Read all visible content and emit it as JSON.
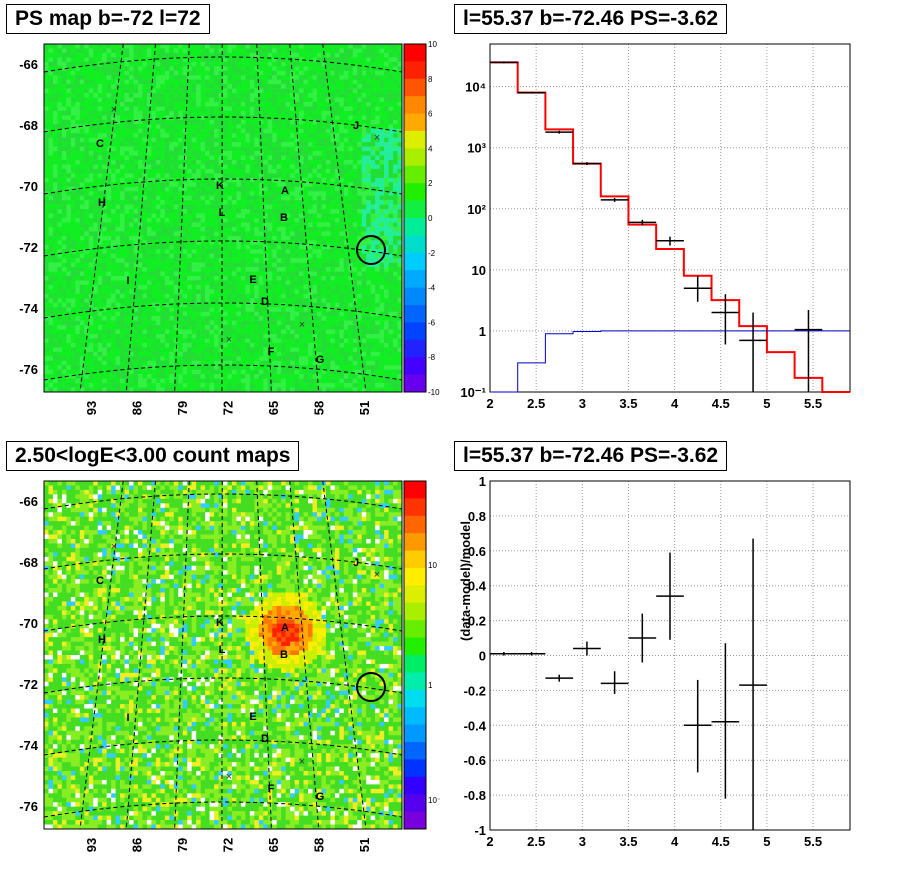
{
  "panels": {
    "ps_map": {
      "title": "PS map b=-72 l=72",
      "lat_ticks": [
        "-66",
        "-68",
        "-70",
        "-72",
        "-74",
        "-76"
      ],
      "lon_ticks": [
        "93",
        "86",
        "79",
        "72",
        "65",
        "58",
        "51"
      ],
      "colorbar_ticks": [
        "10",
        "8",
        "6",
        "4",
        "2",
        "0",
        "-2",
        "-4",
        "-6",
        "-8",
        "-10"
      ],
      "labels": [
        "C",
        "H",
        "K",
        "L",
        "A",
        "B",
        "J",
        "E",
        "D",
        "I",
        "F",
        "G"
      ]
    },
    "count_map": {
      "title": "2.50<logE<3.00 count maps",
      "lat_ticks": [
        "-66",
        "-68",
        "-70",
        "-72",
        "-74",
        "-76"
      ],
      "lon_ticks": [
        "93",
        "86",
        "79",
        "72",
        "65",
        "58",
        "51"
      ],
      "colorbar_ticks": [
        "10",
        "1",
        "10⁻¹"
      ],
      "labels": [
        "C",
        "H",
        "K",
        "L",
        "A",
        "B",
        "J",
        "E",
        "D",
        "I",
        "F",
        "G"
      ]
    },
    "spectrum": {
      "title": "l=55.37 b=-72.46 PS=-3.62"
    },
    "residual": {
      "title": "l=55.37 b=-72.46 PS=-3.62"
    }
  },
  "chart_data": [
    {
      "type": "heatmap",
      "title": "PS map b=-72 l=72",
      "xlabel": "",
      "ylabel": "",
      "x_tick_labels": [
        "93",
        "86",
        "79",
        "72",
        "65",
        "58",
        "51"
      ],
      "y_tick_labels": [
        "-66",
        "-68",
        "-70",
        "-72",
        "-74",
        "-76"
      ],
      "z_range": [
        -10,
        10
      ],
      "markers": [
        "C",
        "H",
        "K",
        "L",
        "A",
        "B",
        "J",
        "E",
        "D",
        "I",
        "F",
        "G"
      ]
    },
    {
      "type": "line",
      "title": "l=55.37 b=-72.46 PS=-3.62",
      "xlim": [
        2,
        5.9
      ],
      "ylim": [
        0.1,
        50000
      ],
      "y_scale": "log",
      "x_ticks": [
        "2",
        "2.5",
        "3",
        "3.5",
        "4",
        "4.5",
        "5",
        "5.5"
      ],
      "y_ticks": [
        "10⁻¹",
        "1",
        "10",
        "10²",
        "10³",
        "10⁴"
      ],
      "series": [
        {
          "style": "step",
          "color": "#ff0000",
          "edges": [
            2.0,
            2.3,
            2.6,
            2.9,
            3.2,
            3.5,
            3.8,
            4.1,
            4.4,
            4.7,
            5.0,
            5.3,
            5.6,
            5.9
          ],
          "values": [
            25000,
            8000,
            2000,
            550,
            160,
            55,
            22,
            8,
            3.2,
            1.2,
            0.45,
            0.17,
            0.08
          ]
        },
        {
          "style": "step",
          "color": "#0000cc",
          "edges": [
            2.0,
            2.3,
            2.6,
            2.9,
            3.2,
            3.5,
            3.8,
            4.1,
            4.4,
            4.7,
            5.0,
            5.3,
            5.6,
            5.9
          ],
          "values": [
            0.1,
            0.3,
            0.9,
            0.98,
            1.0,
            1.0,
            1.0,
            1.0,
            1.0,
            1.0,
            1.0,
            1.0,
            1.0
          ]
        },
        {
          "style": "points",
          "color": "#000000",
          "x": [
            2.15,
            2.45,
            2.75,
            3.05,
            3.35,
            3.65,
            3.95,
            4.25,
            4.55,
            4.85,
            5.45
          ],
          "xerr": [
            0.15,
            0.15,
            0.15,
            0.15,
            0.15,
            0.15,
            0.15,
            0.15,
            0.15,
            0.15,
            0.15
          ],
          "y": [
            25000,
            8000,
            1800,
            550,
            140,
            60,
            30,
            5,
            2,
            0.7,
            1.05
          ],
          "ylo": [
            24000,
            7800,
            1700,
            520,
            130,
            54,
            25,
            3,
            0.6,
            0.1,
            0.1
          ],
          "yhi": [
            26000,
            8200,
            1900,
            580,
            150,
            66,
            35,
            8,
            4,
            2,
            2.2
          ]
        }
      ]
    },
    {
      "type": "scatter",
      "title": "l=55.37 b=-72.46 PS=-3.62",
      "ylabel": "(data-model)/model",
      "xlim": [
        2,
        5.9
      ],
      "ylim": [
        -1,
        1
      ],
      "x_ticks": [
        "2",
        "2.5",
        "3",
        "3.5",
        "4",
        "4.5",
        "5",
        "5.5"
      ],
      "y_ticks": [
        "1",
        "0.8",
        "0.6",
        "0.4",
        "0.2",
        "0",
        "-0.2",
        "-0.4",
        "-0.6",
        "-0.8",
        "-1"
      ],
      "points": {
        "x": [
          2.15,
          2.45,
          2.75,
          3.05,
          3.35,
          3.65,
          3.95,
          4.25,
          4.55,
          4.85
        ],
        "xerr": [
          0.15,
          0.15,
          0.15,
          0.15,
          0.15,
          0.15,
          0.15,
          0.15,
          0.15,
          0.15
        ],
        "y": [
          0.01,
          0.01,
          -0.13,
          0.04,
          -0.16,
          0.1,
          0.34,
          -0.4,
          -0.38,
          -0.17
        ],
        "ylo": [
          0.0,
          0.0,
          -0.15,
          0.0,
          -0.22,
          -0.04,
          0.09,
          -0.67,
          -0.82,
          -1.0
        ],
        "yhi": [
          0.02,
          0.02,
          -0.11,
          0.08,
          -0.09,
          0.24,
          0.59,
          -0.14,
          0.07,
          0.67
        ]
      }
    }
  ]
}
